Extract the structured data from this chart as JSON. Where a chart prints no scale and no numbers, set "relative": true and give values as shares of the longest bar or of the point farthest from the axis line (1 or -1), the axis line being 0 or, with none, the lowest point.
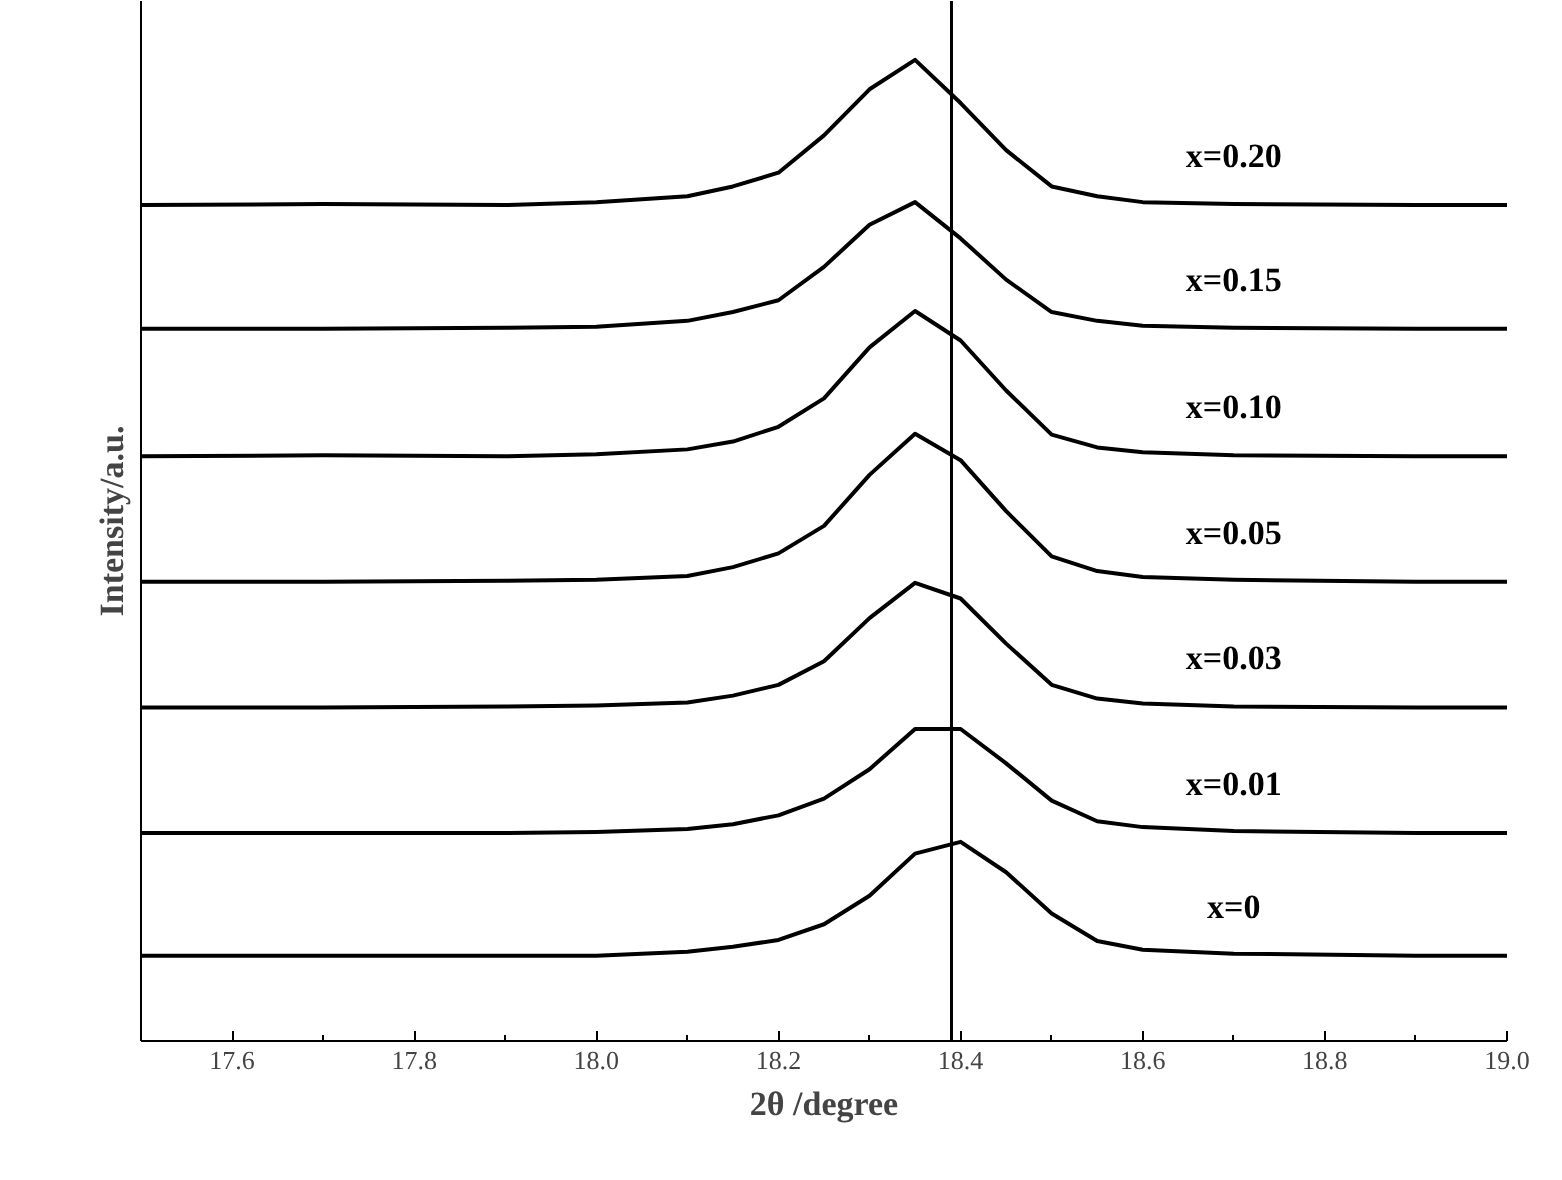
{
  "chart_data": {
    "type": "line",
    "relative": true,
    "xlabel": "2θ /degree",
    "ylabel": "Intensity/a.u.",
    "x": [
      17.5,
      17.7,
      17.9,
      18.0,
      18.1,
      18.15,
      18.2,
      18.25,
      18.3,
      18.35,
      18.4,
      18.45,
      18.5,
      18.55,
      18.6,
      18.7,
      18.9,
      19.0
    ],
    "xlim": [
      17.5,
      19.0
    ],
    "xticks": [
      17.6,
      17.8,
      {
        "value": 18.0,
        "label": "18.0"
      },
      18.2,
      18.4,
      18.6,
      18.8,
      {
        "value": 19.0,
        "label": "19.0"
      }
    ],
    "series": [
      {
        "name": "x=0",
        "color": "#000000",
        "values": [
          0.087,
          0.087,
          0.087,
          0.087,
          0.091,
          0.096,
          0.103,
          0.119,
          0.148,
          0.191,
          0.203,
          0.172,
          0.13,
          0.102,
          0.093,
          0.089,
          0.087,
          0.087
        ]
      },
      {
        "name": "x=0.01",
        "color": "#000000",
        "values": [
          0.212,
          0.212,
          0.212,
          0.213,
          0.216,
          0.221,
          0.23,
          0.247,
          0.277,
          0.318,
          0.318,
          0.283,
          0.245,
          0.224,
          0.218,
          0.214,
          0.212,
          0.212
        ]
      },
      {
        "name": "x=0.03",
        "color": "#000000",
        "values": [
          0.34,
          0.34,
          0.341,
          0.342,
          0.345,
          0.352,
          0.363,
          0.387,
          0.431,
          0.467,
          0.451,
          0.405,
          0.363,
          0.349,
          0.344,
          0.341,
          0.34,
          0.34
        ]
      },
      {
        "name": "x=0.05",
        "color": "#000000",
        "values": [
          0.468,
          0.468,
          0.469,
          0.47,
          0.474,
          0.483,
          0.497,
          0.525,
          0.577,
          0.619,
          0.592,
          0.54,
          0.494,
          0.479,
          0.473,
          0.47,
          0.468,
          0.468
        ]
      },
      {
        "name": "x=0.10",
        "color": "#000000",
        "values": [
          0.596,
          0.597,
          0.596,
          0.598,
          0.603,
          0.611,
          0.626,
          0.655,
          0.707,
          0.744,
          0.714,
          0.663,
          0.618,
          0.605,
          0.6,
          0.597,
          0.596,
          0.596
        ]
      },
      {
        "name": "x=0.15",
        "color": "#000000",
        "values": [
          0.726,
          0.726,
          0.727,
          0.728,
          0.734,
          0.743,
          0.755,
          0.789,
          0.832,
          0.855,
          0.818,
          0.776,
          0.743,
          0.734,
          0.729,
          0.727,
          0.726,
          0.726
        ]
      },
      {
        "name": "x=0.20",
        "color": "#000000",
        "values": [
          0.852,
          0.853,
          0.852,
          0.855,
          0.861,
          0.871,
          0.885,
          0.923,
          0.97,
          1.0,
          0.956,
          0.908,
          0.871,
          0.861,
          0.855,
          0.853,
          0.852,
          0.852
        ]
      }
    ],
    "ref_lines": [
      {
        "axis": "x",
        "value": 18.39,
        "color": "#000000"
      }
    ],
    "marker": "none",
    "line_style": "solid",
    "grid": false,
    "legend": false
  }
}
